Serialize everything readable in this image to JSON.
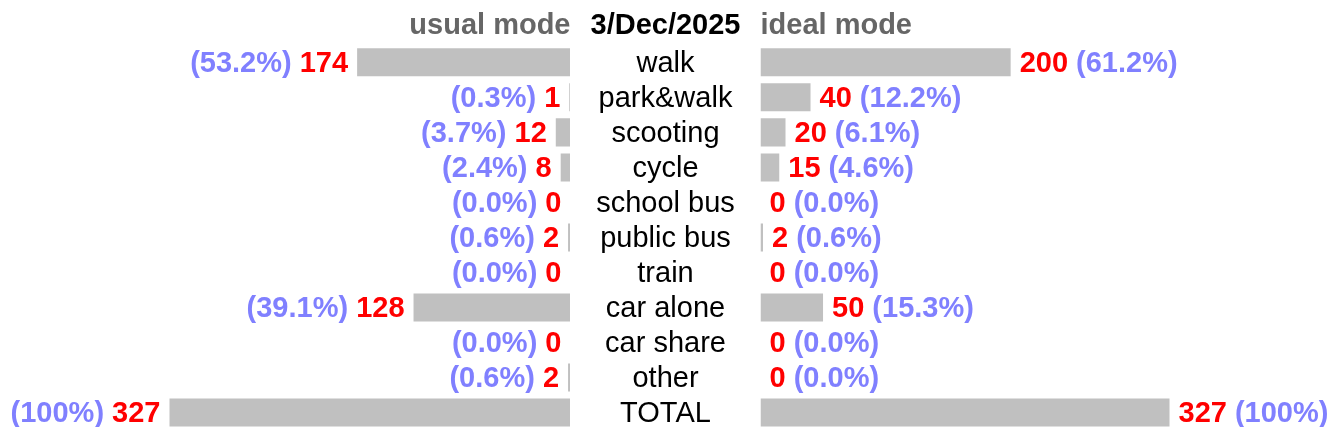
{
  "chart_data": [
    {
      "type": "bar",
      "orientation": "horizontal",
      "title": "usual mode",
      "ylabel": "3/Dec/2025",
      "tick_labels": "y",
      "color": "#c0c0c0",
      "categories": [
        "walk",
        "park&walk",
        "scooting",
        "cycle",
        "school bus",
        "public bus",
        "train",
        "car alone",
        "car share",
        "other",
        "TOTAL"
      ],
      "values": [
        174,
        1,
        12,
        8,
        0,
        2,
        0,
        128,
        0,
        2,
        327
      ],
      "value_labels": [
        "(53.2%) 174",
        "(0.3%) 1",
        "(3.7%) 12",
        "(2.4%) 8",
        "(0.0%) 0",
        "(0.6%) 2",
        "(0.0%) 0",
        "(39.1%) 128",
        "(0.0%) 0",
        "(0.6%) 2",
        "(100%) 327"
      ]
    },
    {
      "type": "bar",
      "orientation": "horizontal",
      "title": "ideal mode",
      "tick_labels": false,
      "color": "#c0c0c0",
      "categories": [
        "walk",
        "park&walk",
        "scooting",
        "cycle",
        "school bus",
        "public bus",
        "train",
        "car alone",
        "car share",
        "other",
        "TOTAL"
      ],
      "values": [
        200,
        40,
        20,
        15,
        0,
        2,
        0,
        50,
        0,
        0,
        327
      ],
      "value_labels": [
        "200 (61.2%)",
        "40 (12.2%)",
        "20 (6.1%)",
        "15 (4.6%)",
        "0 (0.0%)",
        "2 (0.6%)",
        "0 (0.0%)",
        "50 (15.3%)",
        "0 (0.0%)",
        "0 (0.0%)",
        "327 (100%)"
      ]
    }
  ]
}
